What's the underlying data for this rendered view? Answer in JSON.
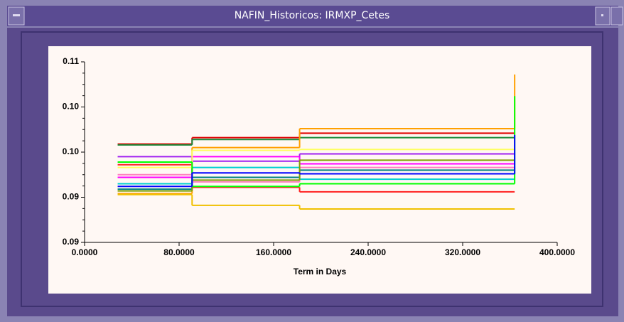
{
  "window": {
    "title": "NAFIN_Historicos: IRMXP_Cetes"
  },
  "chart_data": {
    "type": "step",
    "x_label": "Term in Days",
    "x": [
      28,
      91,
      182,
      364
    ],
    "xlim": [
      0,
      400
    ],
    "xticks": [
      {
        "value": 0,
        "label": "0.0000"
      },
      {
        "value": 80,
        "label": "80.0000"
      },
      {
        "value": 160,
        "label": "160.0000"
      },
      {
        "value": 240,
        "label": "240.0000"
      },
      {
        "value": 320,
        "label": "320.0000"
      },
      {
        "value": 400,
        "label": "400.0000"
      }
    ],
    "ylim": [
      0.09,
      0.11
    ],
    "yticks": [
      {
        "value": 0.09,
        "label": "0.09"
      },
      {
        "value": 0.095,
        "label": "0.09"
      },
      {
        "value": 0.1,
        "label": "0.10"
      },
      {
        "value": 0.105,
        "label": "0.10"
      },
      {
        "value": 0.11,
        "label": "0.11"
      }
    ],
    "series": [
      {
        "color": "#e00000",
        "values": [
          0.1009,
          0.1016,
          0.1021,
          0.1021
        ]
      },
      {
        "color": "#1a8a3a",
        "values": [
          0.1008,
          0.1014,
          0.1016,
          0.1016
        ]
      },
      {
        "color": "#ffa000",
        "values": [
          0.0954,
          0.1005,
          0.1026,
          0.1086
        ]
      },
      {
        "color": "#a020f0",
        "values": [
          0.0995,
          0.099,
          0.0998,
          0.0998
        ]
      },
      {
        "color": "#f0c000",
        "values": [
          0.0953,
          0.0941,
          0.0937,
          0.0937
        ]
      },
      {
        "color": "#ff00ff",
        "values": [
          0.0972,
          0.0995,
          0.0987,
          0.0987
        ]
      },
      {
        "color": "#00d0d0",
        "values": [
          0.0965,
          0.0983,
          0.097,
          0.097
        ]
      },
      {
        "color": "#008080",
        "values": [
          0.0959,
          0.0972,
          0.098,
          0.098
        ]
      },
      {
        "color": "#ff2020",
        "values": [
          0.0986,
          0.0961,
          0.0956,
          0.0956
        ]
      },
      {
        "color": "#ffff60",
        "values": [
          0.0983,
          0.1002,
          0.1003,
          0.1003
        ]
      },
      {
        "color": "#ff80c0",
        "values": [
          0.0975,
          0.0967,
          0.0983,
          0.0983
        ]
      },
      {
        "color": "#80a000",
        "values": [
          0.0957,
          0.0969,
          0.0991,
          0.0991
        ]
      },
      {
        "color": "#00ff00",
        "values": [
          0.0989,
          0.0962,
          0.0965,
          0.1062
        ]
      },
      {
        "color": "#0000ff",
        "values": [
          0.0962,
          0.0977,
          0.0976,
          0.1019
        ]
      }
    ]
  }
}
